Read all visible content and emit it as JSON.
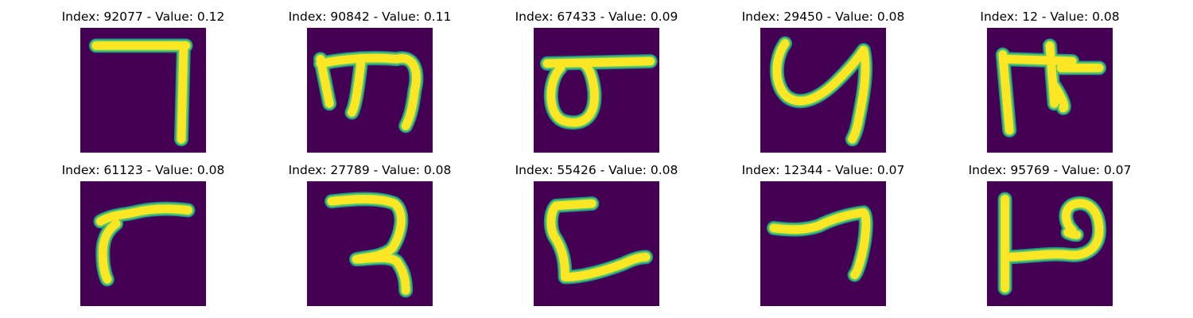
{
  "panels": [
    {
      "title": "Index: 92077 - Value: 0.12",
      "glyph": "glyph-92077-icon"
    },
    {
      "title": "Index: 90842 - Value: 0.11",
      "glyph": "glyph-90842-icon"
    },
    {
      "title": "Index: 67433 - Value: 0.09",
      "glyph": "glyph-67433-icon"
    },
    {
      "title": "Index: 29450 - Value: 0.08",
      "glyph": "glyph-29450-icon"
    },
    {
      "title": "Index: 12 - Value: 0.08",
      "glyph": "glyph-12-icon"
    },
    {
      "title": "Index: 61123 - Value: 0.08",
      "glyph": "glyph-61123-icon"
    },
    {
      "title": "Index: 27789 - Value: 0.08",
      "glyph": "glyph-27789-icon"
    },
    {
      "title": "Index: 55426 - Value: 0.08",
      "glyph": "glyph-55426-icon"
    },
    {
      "title": "Index: 12344 - Value: 0.07",
      "glyph": "glyph-12344-icon"
    },
    {
      "title": "Index: 95769 - Value: 0.07",
      "glyph": "glyph-95769-icon"
    }
  ],
  "colors": {
    "background": "#440154",
    "stroke_core": "#fde725",
    "stroke_edge": "#5ec962",
    "stroke_halo": "#21918c"
  }
}
